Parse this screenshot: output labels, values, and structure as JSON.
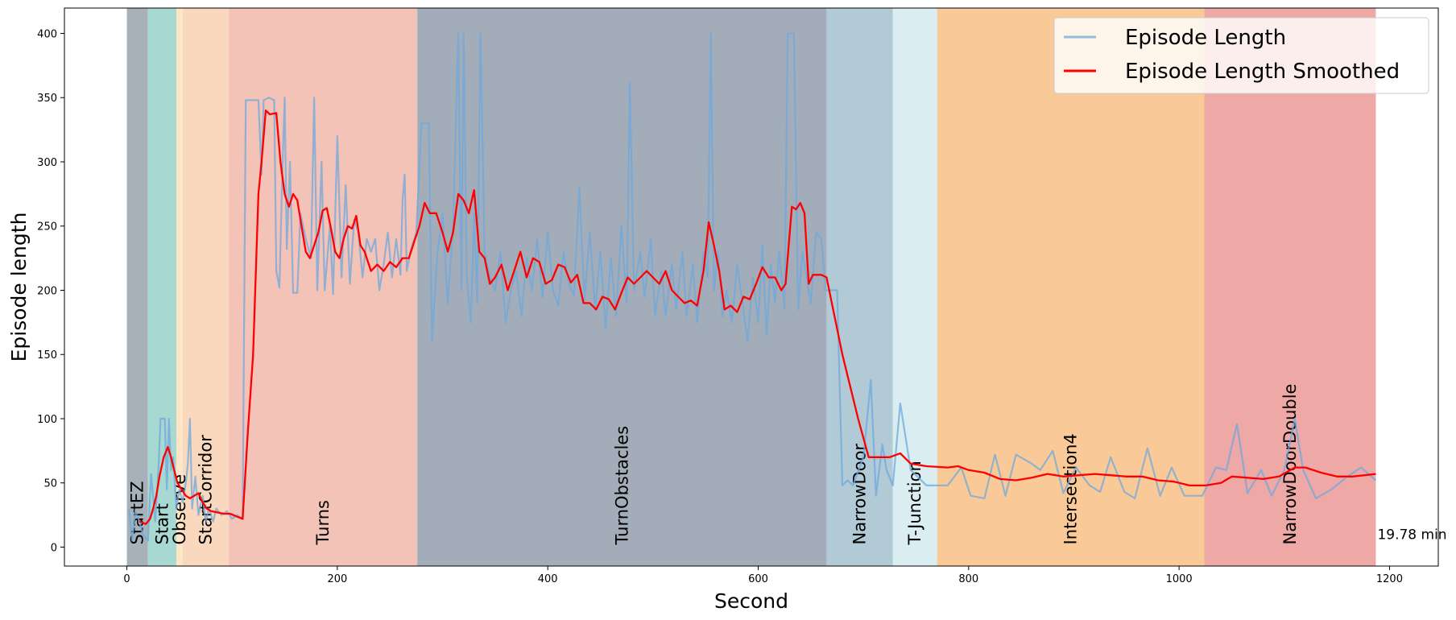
{
  "chart_data": {
    "type": "line",
    "xlabel": "Second",
    "ylabel": "Episode length",
    "xlim": [
      -59.35,
      1246.35
    ],
    "ylim": [
      -14.75,
      419.75
    ],
    "xticks": [
      0,
      200,
      400,
      600,
      800,
      1000,
      1200
    ],
    "yticks": [
      0,
      50,
      100,
      150,
      200,
      250,
      300,
      350,
      400
    ],
    "legend": "upper right",
    "annotation": "19.78 min",
    "regions": [
      {
        "name": "StartEZ",
        "start": 0,
        "end": 20,
        "color": "#a6b1b9"
      },
      {
        "name": "Start",
        "start": 20,
        "end": 47,
        "color": "#a7d8d1"
      },
      {
        "name": "Observe",
        "start": 47,
        "end": 53,
        "color": "#fde5c6"
      },
      {
        "name": "StartCorridor",
        "start": 53,
        "end": 97,
        "color": "#fad8bd"
      },
      {
        "name": "Turns",
        "start": 97,
        "end": 276,
        "color": "#f4c3b8"
      },
      {
        "name": "TurnObstacles",
        "start": 276,
        "end": 665,
        "color": "#a3adb9"
      },
      {
        "name": "NarrowDoor",
        "start": 665,
        "end": 728,
        "color": "#b2c9d6"
      },
      {
        "name": "T-Junction",
        "start": 728,
        "end": 770,
        "color": "#daeef1"
      },
      {
        "name": "Intersection4",
        "start": 770,
        "end": 1024,
        "color": "#f9ca98"
      },
      {
        "name": "NarrowDoorDouble",
        "start": 1024,
        "end": 1187,
        "color": "#eea9a7"
      }
    ],
    "series": [
      {
        "name": "Episode Length",
        "color": "#6fa8dc",
        "x": [
          2,
          5,
          8,
          12,
          15,
          20,
          23,
          27,
          30,
          32,
          36,
          38,
          40,
          42,
          44,
          47,
          50,
          53,
          56,
          58,
          60,
          62,
          65,
          68,
          72,
          75,
          78,
          82,
          85,
          90,
          95,
          100,
          105,
          110,
          113,
          125,
          128,
          130,
          135,
          140,
          142,
          145,
          148,
          150,
          152,
          155,
          158,
          162,
          165,
          170,
          175,
          178,
          181,
          185,
          188,
          193,
          196,
          200,
          204,
          208,
          212,
          216,
          220,
          224,
          228,
          232,
          236,
          240,
          244,
          248,
          252,
          256,
          260,
          262,
          264,
          266,
          270,
          275,
          280,
          287,
          290,
          295,
          300,
          305,
          310,
          315,
          318,
          320,
          323,
          327,
          330,
          333,
          336,
          340,
          345,
          350,
          355,
          360,
          365,
          370,
          375,
          380,
          385,
          390,
          395,
          400,
          405,
          410,
          415,
          420,
          425,
          430,
          435,
          440,
          445,
          450,
          455,
          460,
          465,
          470,
          475,
          478,
          482,
          488,
          492,
          498,
          502,
          508,
          512,
          518,
          522,
          528,
          532,
          538,
          542,
          548,
          552,
          555,
          558,
          562,
          566,
          570,
          575,
          580,
          585,
          590,
          595,
          600,
          604,
          608,
          612,
          616,
          620,
          625,
          628,
          634,
          638,
          642,
          646,
          650,
          655,
          660,
          664,
          675,
          680,
          685,
          690,
          700,
          707,
          712,
          718,
          722,
          728,
          735,
          745,
          760,
          780,
          793,
          802,
          815,
          825,
          835,
          845,
          860,
          868,
          880,
          890,
          902,
          915,
          925,
          935,
          948,
          958,
          970,
          982,
          993,
          1005,
          1022,
          1035,
          1045,
          1055,
          1065,
          1078,
          1088,
          1100,
          1110,
          1118,
          1130,
          1145,
          1160,
          1173,
          1187
        ],
        "values": [
          30,
          5,
          28,
          20,
          10,
          5,
          57,
          20,
          60,
          100,
          100,
          45,
          100,
          60,
          70,
          30,
          45,
          35,
          50,
          65,
          100,
          30,
          55,
          25,
          40,
          20,
          30,
          20,
          30,
          25,
          28,
          22,
          25,
          22,
          348,
          348,
          290,
          348,
          350,
          348,
          215,
          202,
          300,
          350,
          232,
          300,
          198,
          198,
          260,
          240,
          225,
          350,
          200,
          300,
          200,
          250,
          197,
          320,
          210,
          282,
          205,
          255,
          245,
          210,
          240,
          230,
          240,
          200,
          220,
          245,
          210,
          240,
          212,
          270,
          290,
          215,
          232,
          245,
          330,
          330,
          160,
          228,
          260,
          190,
          250,
          400,
          200,
          400,
          210,
          175,
          260,
          190,
          400,
          230,
          210,
          200,
          230,
          175,
          200,
          215,
          180,
          225,
          200,
          240,
          195,
          245,
          200,
          188,
          230,
          205,
          196,
          280,
          192,
          245,
          185,
          230,
          170,
          225,
          180,
          250,
          190,
          362,
          200,
          230,
          195,
          240,
          180,
          215,
          180,
          220,
          185,
          230,
          180,
          220,
          175,
          230,
          210,
          400,
          200,
          230,
          180,
          200,
          175,
          220,
          190,
          160,
          210,
          175,
          235,
          165,
          220,
          190,
          230,
          185,
          400,
          400,
          185,
          230,
          210,
          190,
          245,
          240,
          200,
          200,
          48,
          52,
          48,
          70,
          130,
          40,
          80,
          60,
          48,
          112,
          60,
          48,
          48,
          62,
          40,
          38,
          72,
          40,
          72,
          65,
          60,
          75,
          42,
          62,
          48,
          43,
          70,
          43,
          38,
          77,
          40,
          62,
          40,
          40,
          62,
          60,
          96,
          42,
          60,
          40,
          60,
          100,
          60,
          38,
          45,
          55,
          62,
          52
        ]
      },
      {
        "name": "Episode Length Smoothed",
        "color": "#ff0000",
        "x": [
          12,
          18,
          22,
          25,
          28,
          31,
          35,
          39,
          42,
          45,
          48,
          52,
          56,
          60,
          64,
          68,
          72,
          76,
          80,
          86,
          92,
          98,
          104,
          110,
          115,
          120,
          125,
          128,
          132,
          136,
          142,
          146,
          150,
          154,
          158,
          162,
          166,
          170,
          174,
          178,
          182,
          186,
          190,
          194,
          198,
          202,
          206,
          210,
          214,
          218,
          222,
          226,
          232,
          238,
          244,
          250,
          256,
          262,
          268,
          274,
          278,
          283,
          288,
          294,
          300,
          305,
          310,
          315,
          320,
          325,
          330,
          335,
          340,
          345,
          350,
          356,
          362,
          368,
          374,
          380,
          386,
          392,
          398,
          404,
          410,
          416,
          422,
          428,
          434,
          440,
          446,
          452,
          458,
          464,
          470,
          476,
          482,
          488,
          494,
          500,
          506,
          512,
          518,
          524,
          530,
          536,
          542,
          548,
          553,
          558,
          563,
          568,
          574,
          580,
          586,
          592,
          598,
          604,
          610,
          616,
          622,
          626,
          632,
          636,
          640,
          644,
          648,
          652,
          660,
          665,
          680,
          695,
          705,
          715,
          725,
          735,
          745,
          760,
          780,
          790,
          800,
          815,
          830,
          845,
          860,
          875,
          890,
          905,
          920,
          935,
          950,
          965,
          980,
          995,
          1010,
          1025,
          1040,
          1050,
          1065,
          1080,
          1095,
          1110,
          1120,
          1135,
          1150,
          1165,
          1187
        ],
        "values": [
          20,
          18,
          22,
          30,
          40,
          55,
          70,
          78,
          70,
          60,
          50,
          45,
          40,
          38,
          40,
          42,
          35,
          30,
          28,
          27,
          26,
          26,
          24,
          22,
          90,
          150,
          275,
          300,
          340,
          337,
          338,
          300,
          275,
          265,
          275,
          270,
          250,
          230,
          225,
          235,
          245,
          262,
          264,
          248,
          230,
          225,
          240,
          250,
          248,
          258,
          235,
          230,
          215,
          220,
          215,
          222,
          218,
          225,
          225,
          240,
          250,
          268,
          260,
          260,
          245,
          230,
          245,
          275,
          270,
          260,
          278,
          230,
          225,
          205,
          210,
          220,
          200,
          215,
          230,
          210,
          225,
          222,
          205,
          208,
          220,
          218,
          206,
          212,
          190,
          190,
          185,
          195,
          193,
          185,
          198,
          210,
          205,
          210,
          215,
          210,
          205,
          215,
          200,
          195,
          190,
          192,
          188,
          215,
          253,
          235,
          215,
          185,
          188,
          183,
          195,
          193,
          205,
          218,
          210,
          210,
          200,
          205,
          265,
          263,
          268,
          260,
          205,
          212,
          212,
          210,
          150,
          100,
          70,
          70,
          70,
          73,
          65,
          63,
          62,
          63,
          60,
          58,
          53,
          52,
          54,
          57,
          55,
          56,
          57,
          56,
          55,
          55,
          52,
          51,
          48,
          48,
          50,
          55,
          54,
          53,
          55,
          62,
          62,
          58,
          55,
          55,
          57
        ]
      }
    ]
  }
}
